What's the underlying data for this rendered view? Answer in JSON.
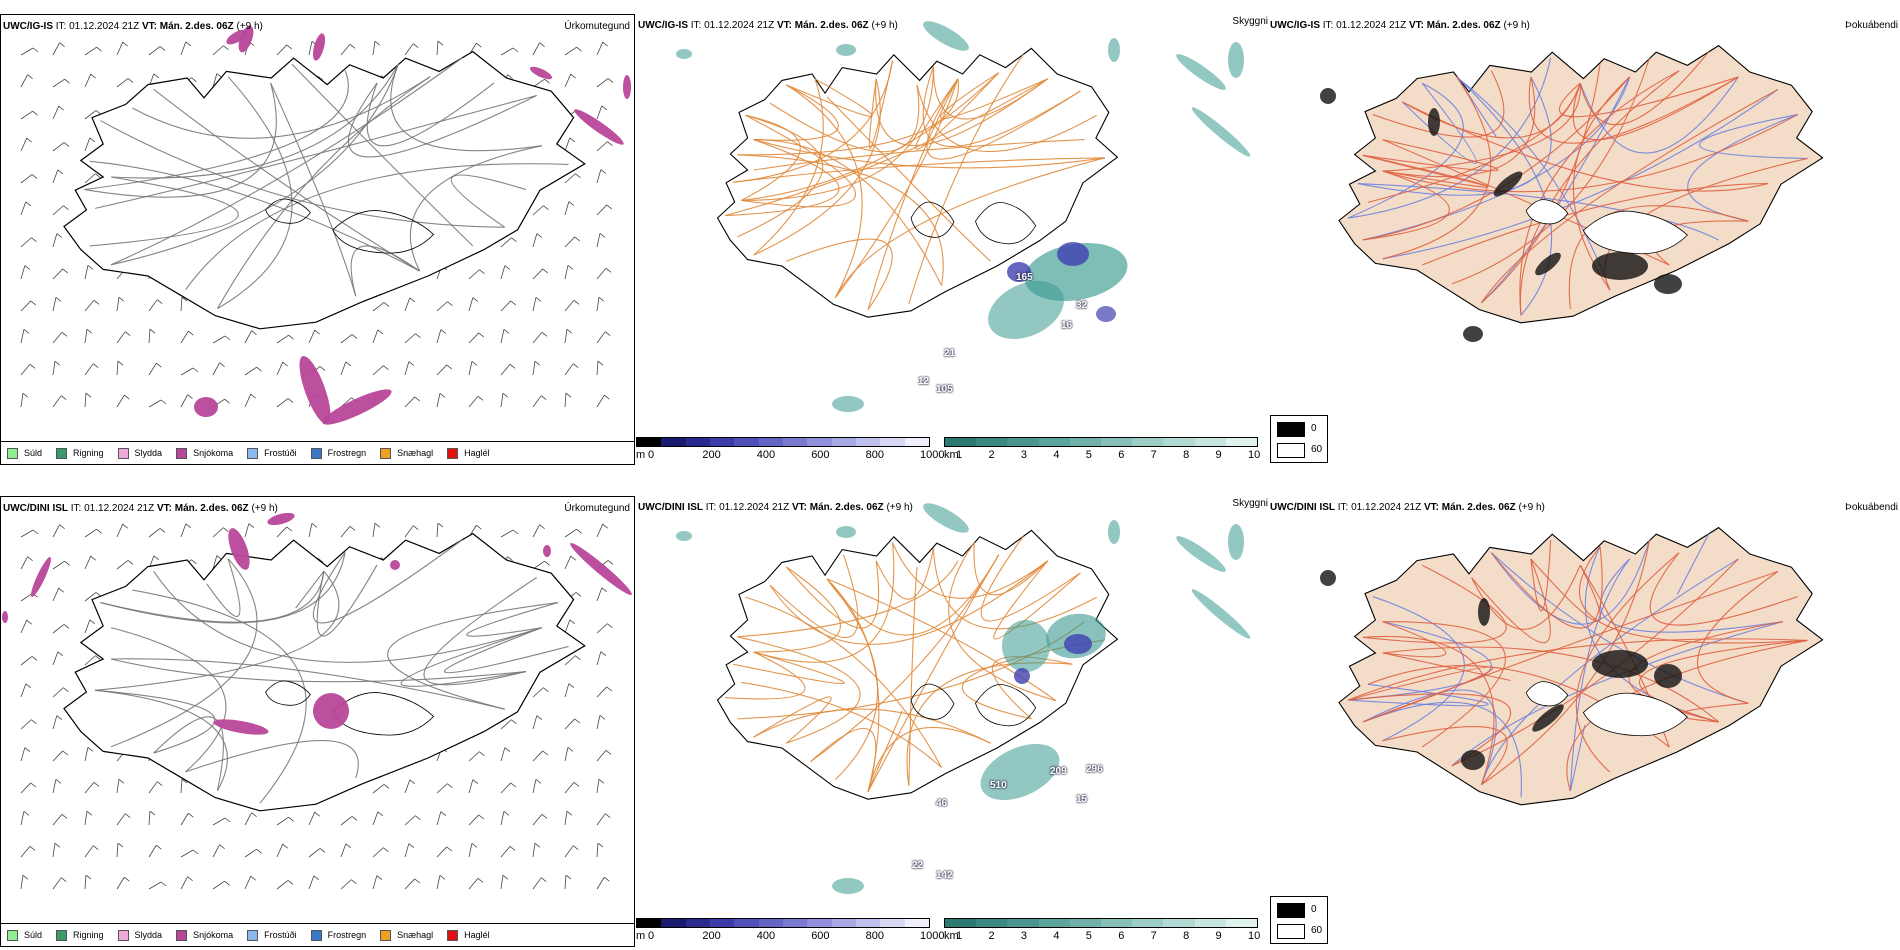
{
  "rows": [
    {
      "model": "UWC/IG-IS",
      "it_label": "IT:",
      "it_value": "01.12.2024 21Z",
      "vt_label": "VT:",
      "vt_value": "Mán. 2.des. 06Z",
      "lead": "(+9 h)",
      "visibility_values": [
        "165",
        "32",
        "16",
        "21",
        "12",
        "105"
      ]
    },
    {
      "model": "UWC/DINI ISL",
      "it_label": "IT:",
      "it_value": "01.12.2024 21Z",
      "vt_label": "VT:",
      "vt_value": "Mán. 2.des. 06Z",
      "lead": "(+9 h)",
      "visibility_values": [
        "510",
        "209",
        "296",
        "15",
        "46",
        "22",
        "142"
      ]
    }
  ],
  "panel_names": {
    "precip": "Úrkomutegund",
    "visibility": "Skyggni",
    "fog": "Þokuábendi"
  },
  "precip_legend": [
    {
      "label": "Súld",
      "color": "#90ee90"
    },
    {
      "label": "Rigning",
      "color": "#3a9a6a"
    },
    {
      "label": "Slydda",
      "color": "#f0a8d8"
    },
    {
      "label": "Snjókoma",
      "color": "#b8479a"
    },
    {
      "label": "Frostúði",
      "color": "#8ab8f0"
    },
    {
      "label": "Frostregn",
      "color": "#3a78c8"
    },
    {
      "label": "Snæhagl",
      "color": "#f0a020"
    },
    {
      "label": "Haglél",
      "color": "#e01010"
    }
  ],
  "ceiling_bar": {
    "unit": "m",
    "ticks": [
      "0",
      "200",
      "400",
      "600",
      "800",
      "1000"
    ],
    "colors": [
      "#000000",
      "#1a1a6e",
      "#2a2a8e",
      "#3c3ca8",
      "#5050b8",
      "#6464c4",
      "#7a7ad0",
      "#9090dc",
      "#a8a8e4",
      "#c0c0ec",
      "#d8d8f4",
      "#f0f0fc"
    ]
  },
  "visibility_bar": {
    "unit": "km",
    "ticks": [
      "1",
      "2",
      "3",
      "4",
      "5",
      "6",
      "7",
      "8",
      "9",
      "10"
    ],
    "colors": [
      "#2a7a72",
      "#3a8880",
      "#4a968e",
      "#5ca49c",
      "#70b2aa",
      "#86c0b8",
      "#9ccec6",
      "#b2dad4",
      "#c8e6e0",
      "#e0f2ee"
    ]
  },
  "fog_legend": [
    {
      "label": "0",
      "color": "#000000"
    },
    {
      "label": "60",
      "color": "#ffffff"
    }
  ],
  "colors": {
    "road_orange": "#e08a3a",
    "road_red": "#e06040",
    "land_beige": "#f3dcc8",
    "snow_magenta": "#b8479a",
    "vis_teal": "#3a9a90",
    "ceiling_blue": "#4040b0",
    "river_blue": "#6b82e0"
  }
}
